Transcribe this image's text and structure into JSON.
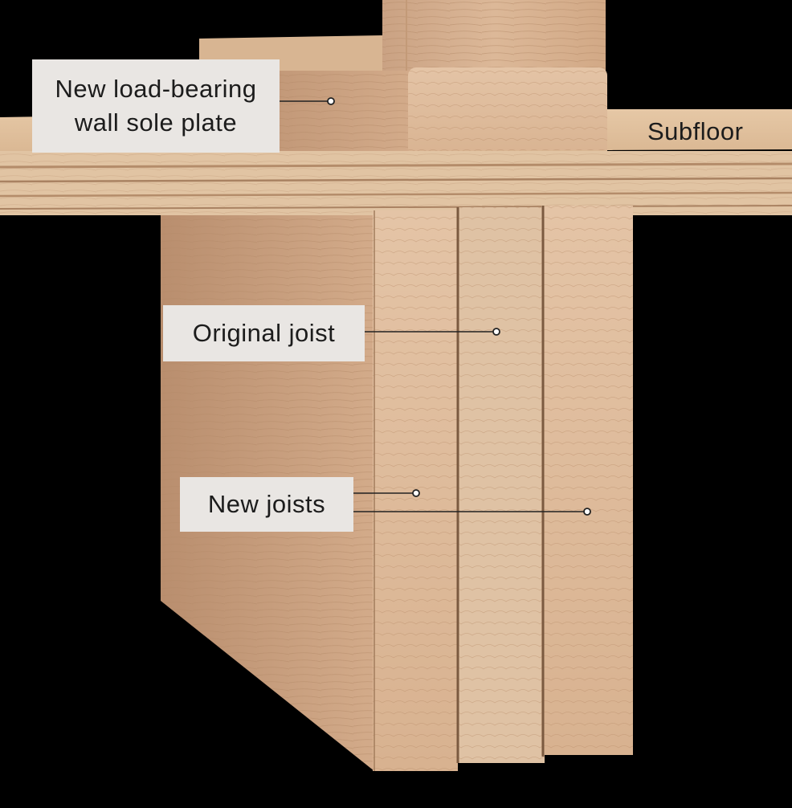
{
  "callouts": {
    "sole_plate": {
      "line1": "New load-bearing",
      "line2": "wall sole plate"
    },
    "subfloor": "Subfloor",
    "original_joist": "Original joist",
    "new_joists": "New joists"
  }
}
